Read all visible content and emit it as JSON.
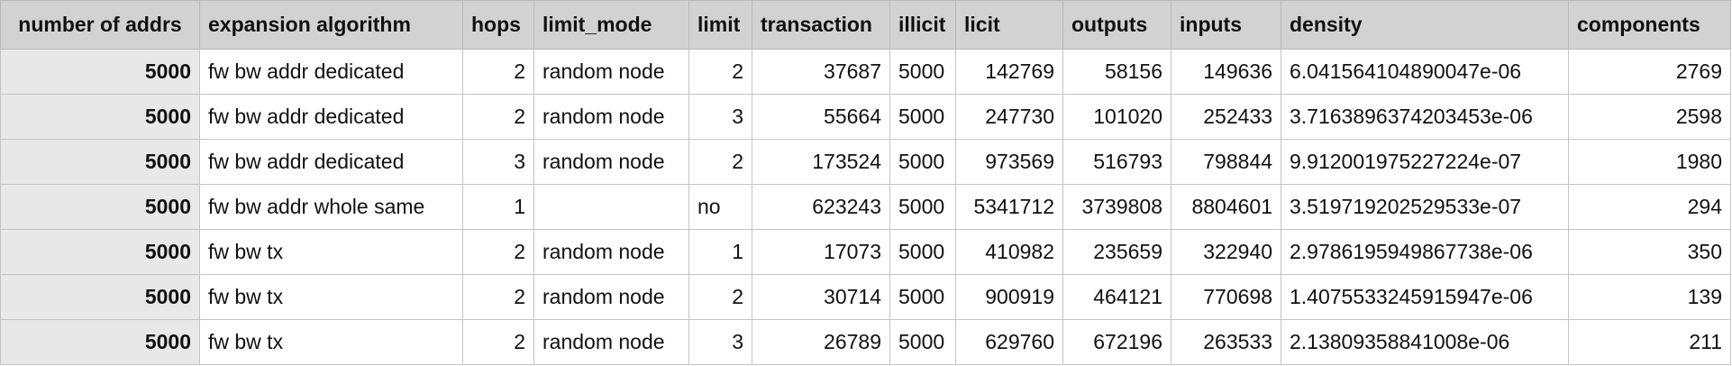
{
  "table": {
    "columns": [
      "number of addrs",
      "expansion algorithm",
      "hops",
      "limit_mode",
      "limit",
      "transaction",
      "illicit",
      "licit",
      "outputs",
      "inputs",
      "density",
      "components"
    ],
    "rows": [
      [
        "5000",
        "fw bw addr dedicated",
        "2",
        "random node",
        "2",
        "37687",
        "5000",
        "142769",
        "58156",
        "149636",
        "6.041564104890047e-06",
        "2769"
      ],
      [
        "5000",
        "fw bw addr dedicated",
        "2",
        "random node",
        "3",
        "55664",
        "5000",
        "247730",
        "101020",
        "252433",
        "3.7163896374203453e-06",
        "2598"
      ],
      [
        "5000",
        "fw bw addr dedicated",
        "3",
        "random node",
        "2",
        "173524",
        "5000",
        "973569",
        "516793",
        "798844",
        "9.912001975227224e-07",
        "1980"
      ],
      [
        "5000",
        "fw bw addr whole same",
        "1",
        "",
        "no",
        "623243",
        "5000",
        "5341712",
        "3739808",
        "8804601",
        "3.519719202529533e-07",
        "294"
      ],
      [
        "5000",
        "fw bw tx",
        "2",
        "random node",
        "1",
        "17073",
        "5000",
        "410982",
        "235659",
        "322940",
        "2.9786195949867738e-06",
        "350"
      ],
      [
        "5000",
        "fw bw tx",
        "2",
        "random node",
        "2",
        "30714",
        "5000",
        "900919",
        "464121",
        "770698",
        "1.4075533245915947e-06",
        "139"
      ],
      [
        "5000",
        "fw bw tx",
        "2",
        "random node",
        "3",
        "26789",
        "5000",
        "629760",
        "672196",
        "263533",
        "2.13809358841008e-06",
        "211"
      ]
    ]
  }
}
